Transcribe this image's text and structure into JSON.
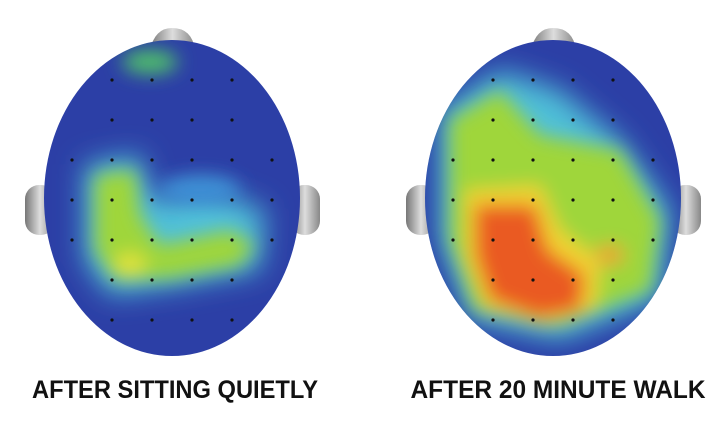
{
  "panels": [
    {
      "label": "AFTER SITTING QUIETLY"
    },
    {
      "label": "AFTER 20 MINUTE WALK"
    }
  ]
}
